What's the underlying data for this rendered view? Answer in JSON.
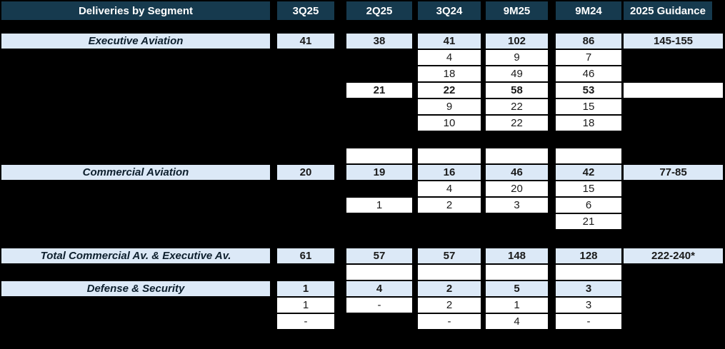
{
  "table": {
    "title": "Deliveries by Segment",
    "columns": [
      "3Q25",
      "2Q25",
      "3Q24",
      "9M25",
      "9M24",
      "2025 Guidance"
    ],
    "colors": {
      "page_bg": "#000000",
      "header_bg": "#163a4e",
      "header_text": "#ffffff",
      "segment_bg": "#dce9f7",
      "cell_bg": "#ffffff",
      "text": "#1a1a1a"
    },
    "rows": [
      {
        "kind": "spacer",
        "h": 17
      },
      {
        "kind": "segment",
        "name": "executive-aviation",
        "label": "Executive Aviation",
        "cells": [
          "41",
          "38",
          "41",
          "102",
          "86",
          "145-155"
        ]
      },
      {
        "kind": "sub",
        "cells": [
          null,
          null,
          "4",
          "9",
          "7",
          null
        ]
      },
      {
        "kind": "sub",
        "cells": [
          null,
          null,
          "18",
          "49",
          "46",
          null
        ]
      },
      {
        "kind": "sub",
        "bold": true,
        "cells": [
          null,
          "21",
          "22",
          "58",
          "53",
          ""
        ]
      },
      {
        "kind": "sub",
        "cells": [
          null,
          null,
          "9",
          "22",
          "15",
          null
        ]
      },
      {
        "kind": "sub",
        "cells": [
          null,
          null,
          "10",
          "22",
          "18",
          null
        ]
      },
      {
        "kind": "spacer",
        "h": 23
      },
      {
        "kind": "sub",
        "cells": [
          null,
          "",
          "",
          "",
          "",
          null
        ]
      },
      {
        "kind": "segment",
        "name": "commercial-aviation",
        "label": "Commercial Aviation",
        "cells": [
          "20",
          "19",
          "16",
          "46",
          "42",
          "77-85"
        ]
      },
      {
        "kind": "sub",
        "cells": [
          null,
          null,
          "4",
          "20",
          "15",
          null
        ]
      },
      {
        "kind": "sub",
        "cells": [
          null,
          "1",
          "2",
          "3",
          "6",
          null
        ]
      },
      {
        "kind": "sub",
        "cells": [
          null,
          null,
          null,
          null,
          "21",
          null
        ]
      },
      {
        "kind": "spacer",
        "h": 25
      },
      {
        "kind": "segment",
        "name": "total-commercial-executive",
        "label": "Total Commercial Av. & Executive Av.",
        "cells": [
          "61",
          "57",
          "57",
          "148",
          "128",
          "222-240*"
        ]
      },
      {
        "kind": "sub",
        "cells": [
          null,
          "",
          "",
          "",
          "",
          null
        ]
      },
      {
        "kind": "segment",
        "name": "defense-security",
        "label": "Defense & Security",
        "cells": [
          "1",
          "4",
          "2",
          "5",
          "3",
          null
        ]
      },
      {
        "kind": "sub",
        "cells": [
          "1",
          "-",
          "2",
          "1",
          "3",
          null
        ]
      },
      {
        "kind": "sub",
        "cells": [
          "-",
          null,
          "-",
          "4",
          "-",
          null
        ]
      }
    ]
  }
}
